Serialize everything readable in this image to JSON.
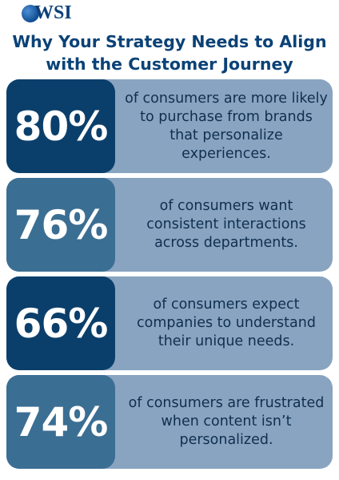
{
  "logo": {
    "text": "WSI"
  },
  "title": {
    "line1": "Why Your Strategy Needs to Align",
    "line2": "with the Customer Journey"
  },
  "stats": [
    {
      "value": "80%",
      "text": "of consumers are more likely to purchase from brands that personalize experiences."
    },
    {
      "value": "76%",
      "text": "of consumers want consistent interactions across departments."
    },
    {
      "value": "66%",
      "text": "of consumers expect companies to understand their unique needs."
    },
    {
      "value": "74%",
      "text": "of consumers are frustrated when content isn’t personalized."
    }
  ],
  "colors": {
    "title": "#0b4277",
    "card": "#89a4c1",
    "stat_dark": "#0b3f6b",
    "stat_mid": "#3b6e93"
  }
}
